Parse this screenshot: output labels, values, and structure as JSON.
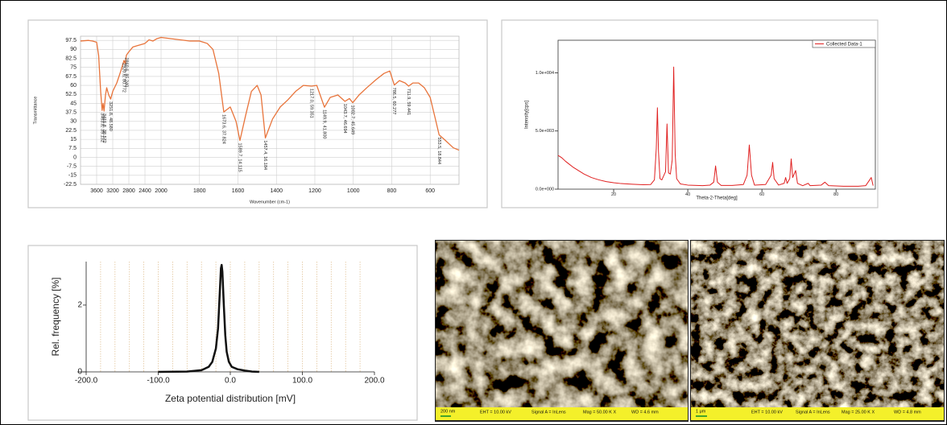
{
  "chart_data": [
    {
      "type": "line",
      "ylabel": "Transmittance",
      "xlabel": "Wavenumber (cm-1)",
      "xlim": [
        4000,
        450
      ],
      "xbreak": 2000,
      "ylim": [
        -22.5,
        101
      ],
      "xticks": [
        3600,
        3200,
        2800,
        2400,
        2000,
        1800,
        1600,
        1400,
        1200,
        1000,
        800,
        600
      ],
      "yticks": [
        97.5,
        90,
        82.5,
        75,
        67.5,
        60,
        52.5,
        45,
        37.5,
        30,
        22.5,
        15,
        7.5,
        0,
        -7.5,
        -15,
        -22.5
      ],
      "grid": true,
      "x": [
        4000,
        3800,
        3700,
        3600,
        3550,
        3500,
        3463.8,
        3440,
        3415.8,
        3380,
        3350,
        3300,
        3251.8,
        3200,
        3100,
        3000,
        2920.6,
        2890,
        2860.6,
        2800,
        2700,
        2600,
        2400,
        2300,
        2200,
        2100,
        2000,
        1950,
        1900,
        1850,
        1800,
        1760,
        1730,
        1700,
        1673.6,
        1640,
        1610,
        1589.7,
        1560,
        1530,
        1500,
        1480,
        1457.4,
        1420,
        1380,
        1340,
        1300,
        1260,
        1217.0,
        1190,
        1149.9,
        1120,
        1080,
        1043.7,
        1020,
        1002.7,
        970,
        930,
        880,
        840,
        810,
        786.5,
        760,
        730,
        711.9,
        690,
        660,
        630,
        600,
        570,
        553.5,
        520,
        480,
        450
      ],
      "series": [
        {
          "color": "#e8743b",
          "values": [
            97,
            97.5,
            97,
            96,
            85,
            55,
            39.1,
            45,
            38.6,
            52,
            58,
            52,
            48.6,
            55,
            62,
            72,
            80.8,
            78,
            85.2,
            88,
            92,
            93,
            95,
            98,
            97,
            99,
            100,
            99,
            98,
            97,
            97,
            95,
            90,
            70,
            37.8,
            42,
            30,
            14.1,
            35,
            55,
            60,
            52,
            16.2,
            32,
            42,
            48,
            55,
            60,
            59.4,
            60,
            41.8,
            50,
            52,
            46.7,
            49,
            45.6,
            52,
            58,
            65,
            70,
            72,
            60.3,
            64,
            62,
            59.4,
            62,
            62,
            58,
            50,
            30,
            18.8,
            14,
            8,
            6
          ]
        }
      ],
      "annotations": [
        {
          "x": 3463.8,
          "y": 39.132,
          "text": "3463.8, 39.132"
        },
        {
          "x": 3415.8,
          "y": 38.572,
          "text": "3415.8, 38.572"
        },
        {
          "x": 3251.8,
          "y": 48.58,
          "text": "3251.8, 48.580"
        },
        {
          "x": 2920.6,
          "y": 80.772,
          "text": "2920.6, 80.772"
        },
        {
          "x": 2860.6,
          "y": 85.24,
          "text": "2860.6, 85.240"
        },
        {
          "x": 1673.6,
          "y": 37.824,
          "text": "1673.6, 37.824"
        },
        {
          "x": 1589.7,
          "y": 14.115,
          "text": "1589.7, 14.115"
        },
        {
          "x": 1457.4,
          "y": 16.184,
          "text": "1457.4, 16.184"
        },
        {
          "x": 1217.0,
          "y": 59.351,
          "text": "1217.0, 59.351"
        },
        {
          "x": 1149.9,
          "y": 41.8,
          "text": "1149.9, 41.800"
        },
        {
          "x": 1043.7,
          "y": 46.694,
          "text": "1043.7, 46.694"
        },
        {
          "x": 1002.7,
          "y": 45.649,
          "text": "1002.7, 45.649"
        },
        {
          "x": 786.5,
          "y": 60.277,
          "text": "786.5, 60.277"
        },
        {
          "x": 711.9,
          "y": 59.441,
          "text": "711.9, 59.441"
        },
        {
          "x": 553.5,
          "y": 18.844,
          "text": "553.5, 18.844"
        }
      ]
    },
    {
      "type": "line",
      "ylabel": "Intensity[cps]",
      "xlabel": "Theta-2-Theta[deg]",
      "xlim": [
        5,
        90.6
      ],
      "ylim": [
        0,
        12800
      ],
      "xticks": [
        20,
        40,
        60,
        80
      ],
      "yticks": [
        {
          "value": 0,
          "label": "0.0e+000"
        },
        {
          "value": 5000,
          "label": "5.0e+003"
        },
        {
          "value": 10000,
          "label": "1.0e+004"
        }
      ],
      "grid": false,
      "legend": "upper right",
      "x": [
        5,
        6,
        7,
        8,
        9,
        10,
        12,
        14,
        16,
        18,
        20,
        22,
        25,
        28,
        30,
        31,
        31.5,
        31.8,
        32.1,
        32.5,
        33,
        34,
        34.4,
        34.8,
        35.3,
        35.8,
        36.2,
        36.6,
        37,
        38,
        40,
        44,
        46,
        47,
        47.5,
        48,
        49,
        52,
        55,
        56,
        56.6,
        57.2,
        58,
        61,
        62.5,
        62.9,
        63.3,
        64.5,
        66,
        66.4,
        66.8,
        67.5,
        67.9,
        68.3,
        69.1,
        69.6,
        71,
        72.5,
        73,
        76,
        77,
        78,
        82,
        86,
        88,
        89.5,
        90
      ],
      "series": [
        {
          "name": "Collected Data-1",
          "color": "#e02020",
          "values": [
            2900,
            2700,
            2400,
            2150,
            1900,
            1700,
            1300,
            1000,
            800,
            650,
            550,
            480,
            420,
            380,
            400,
            800,
            3500,
            7000,
            3200,
            900,
            800,
            1500,
            5600,
            1400,
            1300,
            2500,
            10500,
            3000,
            900,
            450,
            350,
            300,
            350,
            600,
            2000,
            600,
            320,
            320,
            400,
            1200,
            3800,
            1200,
            350,
            400,
            1200,
            2300,
            900,
            350,
            500,
            1000,
            500,
            900,
            2600,
            1000,
            1600,
            500,
            300,
            500,
            300,
            350,
            600,
            300,
            250,
            250,
            300,
            1000,
            300
          ]
        }
      ]
    },
    {
      "type": "line",
      "ylabel": "Rel. frequency [%]",
      "xlabel": "Zeta potential distribution [mV]",
      "xlim": [
        -200,
        200
      ],
      "ylim": [
        0,
        3.3
      ],
      "xticks": [
        {
          "value": -200,
          "label": "-200.0"
        },
        {
          "value": -100,
          "label": "-100.0"
        },
        {
          "value": 0,
          "label": "0.0"
        },
        {
          "value": 100,
          "label": "100.0"
        },
        {
          "value": 200,
          "label": "200.0"
        }
      ],
      "yticks": [
        0,
        2
      ],
      "xminorticks": [
        -180,
        -160,
        -140,
        -120,
        -100,
        -80,
        -60,
        -40,
        -20,
        0,
        20,
        40,
        60,
        80,
        100,
        120,
        140,
        160,
        180
      ],
      "grid": false,
      "x": [
        -100,
        -60,
        -40,
        -30,
        -25,
        -20,
        -17,
        -15,
        -13,
        -12,
        -11,
        -9,
        -7,
        -5,
        -2,
        2,
        10,
        20,
        30,
        40
      ],
      "series": [
        {
          "color": "#111111",
          "values": [
            0,
            0.01,
            0.05,
            0.15,
            0.3,
            0.7,
            1.3,
            2.2,
            3.1,
            3.2,
            3.0,
            2.0,
            1.1,
            0.6,
            0.3,
            0.15,
            0.08,
            0.04,
            0.01,
            0
          ]
        }
      ]
    }
  ],
  "sem_images": [
    {
      "scale_bar": "200 nm",
      "eht": "EHT = 10.00 kV",
      "signal": "Signal A = InLens",
      "mag": "Mag = 50.00 K X",
      "wd": "WD = 4.6 mm"
    },
    {
      "scale_bar": "1 μm",
      "eht": "EHT = 10.00 kV",
      "signal": "Signal A = InLens",
      "mag": "Mag = 25.00 K X",
      "wd": "WD = 4.8 mm"
    }
  ]
}
